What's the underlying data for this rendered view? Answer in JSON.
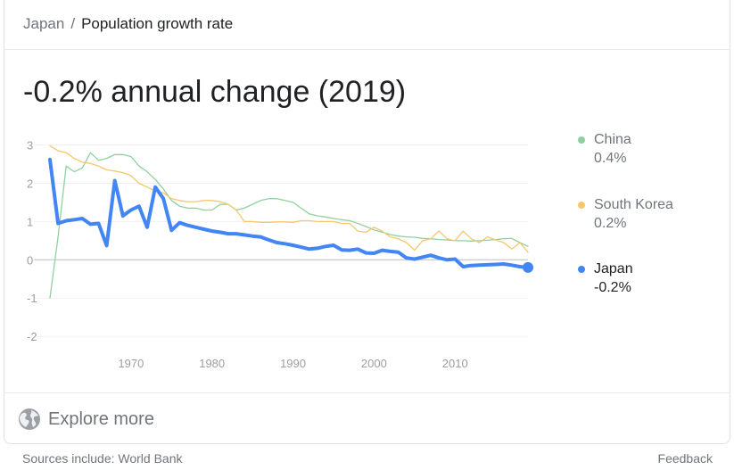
{
  "breadcrumb": {
    "parent": "Japan",
    "separator": "/",
    "current": "Population growth rate"
  },
  "headline": "-0.2% annual change (2019)",
  "legend": [
    {
      "name": "China",
      "value": "0.4%",
      "color": "#8fd19e"
    },
    {
      "name": "South Korea",
      "value": "0.2%",
      "color": "#f5c76b"
    },
    {
      "name": "Japan",
      "value": "-0.2%",
      "color": "#4285f4"
    }
  ],
  "footer": {
    "explore_label": "Explore more",
    "explore_icon": "globe-icon",
    "sources": "Sources include: World Bank",
    "feedback": "Feedback"
  },
  "chart_data": {
    "type": "line",
    "ylim": [
      -2.3,
      3.2
    ],
    "xlim": [
      1960,
      2019
    ],
    "yticks": [
      -2,
      -1,
      0,
      1,
      2,
      3
    ],
    "xticks": [
      1970,
      1980,
      1990,
      2000,
      2010
    ],
    "grid": true,
    "series": [
      {
        "name": "China",
        "color": "#8fd19e",
        "x": [
          1960,
          1961,
          1962,
          1963,
          1964,
          1965,
          1966,
          1967,
          1968,
          1969,
          1970,
          1971,
          1972,
          1973,
          1974,
          1975,
          1976,
          1977,
          1978,
          1979,
          1980,
          1981,
          1982,
          1983,
          1984,
          1985,
          1986,
          1987,
          1988,
          1989,
          1990,
          1991,
          1992,
          1993,
          1994,
          1995,
          1996,
          1997,
          1998,
          1999,
          2000,
          2001,
          2002,
          2003,
          2004,
          2005,
          2006,
          2007,
          2008,
          2009,
          2010,
          2011,
          2012,
          2013,
          2014,
          2015,
          2016,
          2017,
          2018,
          2019
        ],
        "values": [
          -1.0,
          0.6,
          2.45,
          2.3,
          2.4,
          2.8,
          2.6,
          2.65,
          2.75,
          2.75,
          2.7,
          2.45,
          2.3,
          2.1,
          1.85,
          1.55,
          1.4,
          1.35,
          1.35,
          1.3,
          1.3,
          1.45,
          1.45,
          1.3,
          1.35,
          1.45,
          1.55,
          1.6,
          1.6,
          1.55,
          1.5,
          1.35,
          1.2,
          1.15,
          1.12,
          1.08,
          1.05,
          1.02,
          0.95,
          0.87,
          0.78,
          0.72,
          0.66,
          0.62,
          0.6,
          0.59,
          0.56,
          0.55,
          0.53,
          0.52,
          0.5,
          0.5,
          0.49,
          0.5,
          0.51,
          0.53,
          0.55,
          0.56,
          0.45,
          0.35
        ]
      },
      {
        "name": "South Korea",
        "color": "#f5c76b",
        "x": [
          1960,
          1961,
          1962,
          1963,
          1964,
          1965,
          1966,
          1967,
          1968,
          1969,
          1970,
          1971,
          1972,
          1973,
          1974,
          1975,
          1976,
          1977,
          1978,
          1979,
          1980,
          1981,
          1982,
          1983,
          1984,
          1985,
          1986,
          1987,
          1988,
          1989,
          1990,
          1991,
          1992,
          1993,
          1994,
          1995,
          1996,
          1997,
          1998,
          1999,
          2000,
          2001,
          2002,
          2003,
          2004,
          2005,
          2006,
          2007,
          2008,
          2009,
          2010,
          2011,
          2012,
          2013,
          2014,
          2015,
          2016,
          2017,
          2018,
          2019
        ],
        "values": [
          2.98,
          2.85,
          2.8,
          2.65,
          2.55,
          2.52,
          2.45,
          2.35,
          2.32,
          2.28,
          2.2,
          2.0,
          1.9,
          1.8,
          1.75,
          1.6,
          1.55,
          1.52,
          1.52,
          1.55,
          1.55,
          1.52,
          1.45,
          1.3,
          1.0,
          1.0,
          0.98,
          0.98,
          0.99,
          0.99,
          0.98,
          1.02,
          1.02,
          1.0,
          1.0,
          1.0,
          0.95,
          0.95,
          0.75,
          0.72,
          0.85,
          0.75,
          0.6,
          0.55,
          0.45,
          0.25,
          0.5,
          0.55,
          0.75,
          0.55,
          0.5,
          0.75,
          0.55,
          0.45,
          0.6,
          0.52,
          0.45,
          0.28,
          0.45,
          0.2
        ]
      },
      {
        "name": "Japan",
        "color": "#4285f4",
        "x": [
          1960,
          1961,
          1962,
          1963,
          1964,
          1965,
          1966,
          1967,
          1968,
          1969,
          1970,
          1971,
          1972,
          1973,
          1974,
          1975,
          1976,
          1977,
          1978,
          1979,
          1980,
          1981,
          1982,
          1983,
          1984,
          1985,
          1986,
          1987,
          1988,
          1989,
          1990,
          1991,
          1992,
          1993,
          1994,
          1995,
          1996,
          1997,
          1998,
          1999,
          2000,
          2001,
          2002,
          2003,
          2004,
          2005,
          2006,
          2007,
          2008,
          2009,
          2010,
          2011,
          2012,
          2013,
          2014,
          2015,
          2016,
          2017,
          2018,
          2019
        ],
        "values": [
          2.62,
          0.95,
          1.02,
          1.05,
          1.08,
          0.93,
          0.95,
          0.37,
          2.07,
          1.15,
          1.3,
          1.4,
          0.85,
          1.9,
          1.6,
          0.77,
          0.97,
          0.9,
          0.85,
          0.8,
          0.75,
          0.72,
          0.68,
          0.68,
          0.65,
          0.62,
          0.6,
          0.52,
          0.45,
          0.42,
          0.38,
          0.33,
          0.28,
          0.3,
          0.35,
          0.38,
          0.26,
          0.25,
          0.28,
          0.18,
          0.17,
          0.25,
          0.22,
          0.2,
          0.05,
          0.02,
          0.07,
          0.12,
          0.05,
          0.0,
          0.02,
          -0.18,
          -0.15,
          -0.14,
          -0.13,
          -0.12,
          -0.11,
          -0.14,
          -0.18,
          -0.2
        ]
      }
    ]
  }
}
